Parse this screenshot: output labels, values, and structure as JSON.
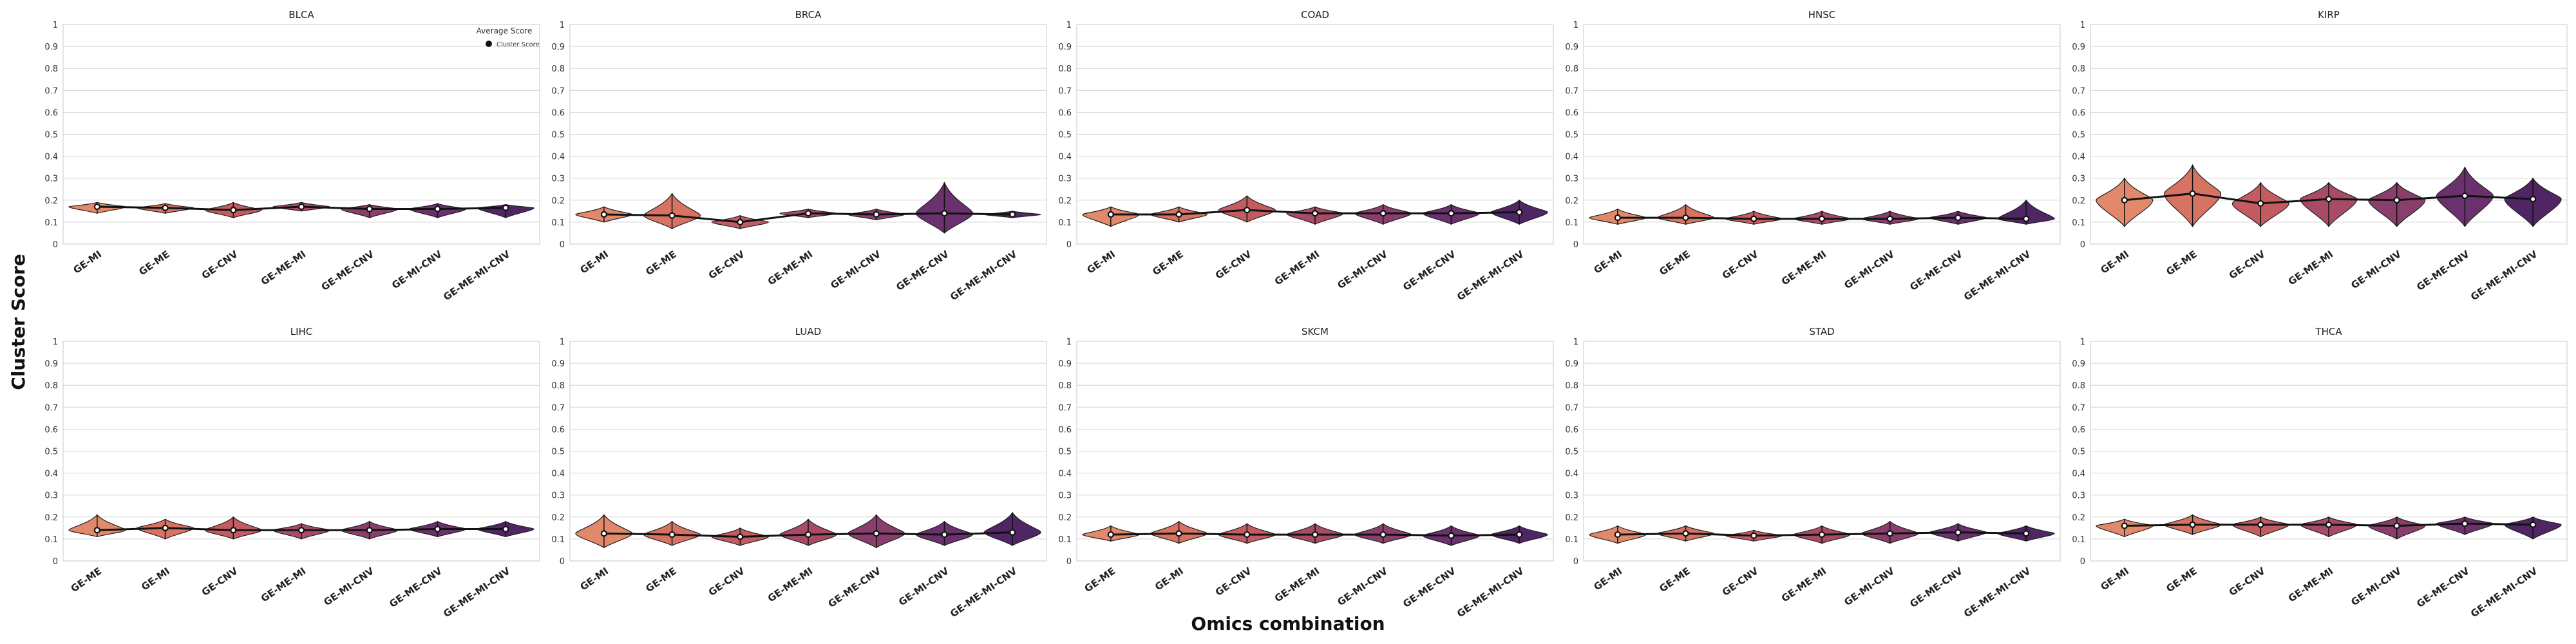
{
  "figure": {
    "ylabel": "Cluster Score",
    "xlabel": "Omics combination",
    "legend": {
      "title": "Average Score",
      "entry": "Cluster Score",
      "location": "top-right of first panel"
    }
  },
  "palette": [
    "#e1896a",
    "#d67362",
    "#c35c60",
    "#a84b66",
    "#8a3e6c",
    "#6b306e",
    "#4f2563"
  ],
  "chart_data": [
    {
      "type": "violin",
      "title": "BLCA",
      "categories": [
        "GE-MI",
        "GE-ME",
        "GE-CNV",
        "GE-ME-MI",
        "GE-ME-CNV",
        "GE-MI-CNV",
        "GE-ME-MI-CNV"
      ],
      "means": [
        0.17,
        0.165,
        0.155,
        0.17,
        0.16,
        0.16,
        0.165
      ],
      "ranges": [
        [
          0.14,
          0.19
        ],
        [
          0.14,
          0.185
        ],
        [
          0.12,
          0.19
        ],
        [
          0.15,
          0.19
        ],
        [
          0.12,
          0.18
        ],
        [
          0.12,
          0.185
        ],
        [
          0.12,
          0.18
        ]
      ],
      "ylim": [
        0,
        1
      ],
      "yticks": [
        "0",
        "0.1",
        "0.2",
        "0.3",
        "0.4",
        "0.5",
        "0.6",
        "0.7",
        "0.8",
        "0.9",
        "1"
      ],
      "grid": true
    },
    {
      "type": "violin",
      "title": "BRCA",
      "categories": [
        "GE-MI",
        "GE-ME",
        "GE-CNV",
        "GE-ME-MI",
        "GE-MI-CNV",
        "GE-ME-CNV",
        "GE-ME-MI-CNV"
      ],
      "means": [
        0.135,
        0.13,
        0.1,
        0.14,
        0.135,
        0.14,
        0.135
      ],
      "ranges": [
        [
          0.1,
          0.17
        ],
        [
          0.07,
          0.23
        ],
        [
          0.07,
          0.13
        ],
        [
          0.12,
          0.16
        ],
        [
          0.11,
          0.16
        ],
        [
          0.05,
          0.28
        ],
        [
          0.12,
          0.15
        ]
      ],
      "ylim": [
        0,
        1
      ],
      "yticks": [
        "0",
        "0.1",
        "0.2",
        "0.3",
        "0.4",
        "0.5",
        "0.6",
        "0.7",
        "0.8",
        "0.9",
        "1"
      ],
      "grid": true
    },
    {
      "type": "violin",
      "title": "COAD",
      "categories": [
        "GE-MI",
        "GE-ME",
        "GE-CNV",
        "GE-ME-MI",
        "GE-MI-CNV",
        "GE-ME-CNV",
        "GE-ME-MI-CNV"
      ],
      "means": [
        0.135,
        0.135,
        0.155,
        0.14,
        0.14,
        0.14,
        0.145
      ],
      "ranges": [
        [
          0.08,
          0.17
        ],
        [
          0.1,
          0.17
        ],
        [
          0.1,
          0.22
        ],
        [
          0.09,
          0.17
        ],
        [
          0.09,
          0.18
        ],
        [
          0.09,
          0.18
        ],
        [
          0.09,
          0.2
        ]
      ],
      "ylim": [
        0,
        1
      ],
      "yticks": [
        "0",
        "0.1",
        "0.2",
        "0.3",
        "0.4",
        "0.5",
        "0.6",
        "0.7",
        "0.8",
        "0.9",
        "1"
      ],
      "grid": true
    },
    {
      "type": "violin",
      "title": "HNSC",
      "categories": [
        "GE-MI",
        "GE-ME",
        "GE-CNV",
        "GE-ME-MI",
        "GE-MI-CNV",
        "GE-ME-CNV",
        "GE-ME-MI-CNV"
      ],
      "means": [
        0.12,
        0.12,
        0.115,
        0.115,
        0.115,
        0.12,
        0.115
      ],
      "ranges": [
        [
          0.09,
          0.16
        ],
        [
          0.09,
          0.18
        ],
        [
          0.09,
          0.15
        ],
        [
          0.09,
          0.15
        ],
        [
          0.09,
          0.15
        ],
        [
          0.09,
          0.15
        ],
        [
          0.09,
          0.2
        ]
      ],
      "ylim": [
        0,
        1
      ],
      "yticks": [
        "0",
        "0.1",
        "0.2",
        "0.3",
        "0.4",
        "0.5",
        "0.6",
        "0.7",
        "0.8",
        "0.9",
        "1"
      ],
      "grid": true
    },
    {
      "type": "violin",
      "title": "KIRP",
      "categories": [
        "GE-MI",
        "GE-ME",
        "GE-CNV",
        "GE-ME-MI",
        "GE-MI-CNV",
        "GE-ME-CNV",
        "GE-ME-MI-CNV"
      ],
      "means": [
        0.2,
        0.23,
        0.185,
        0.205,
        0.2,
        0.22,
        0.205
      ],
      "ranges": [
        [
          0.08,
          0.3
        ],
        [
          0.08,
          0.36
        ],
        [
          0.08,
          0.28
        ],
        [
          0.08,
          0.28
        ],
        [
          0.08,
          0.28
        ],
        [
          0.08,
          0.35
        ],
        [
          0.08,
          0.3
        ]
      ],
      "ylim": [
        0,
        1
      ],
      "yticks": [
        "0",
        "0.1",
        "0.2",
        "0.3",
        "0.4",
        "0.5",
        "0.6",
        "0.7",
        "0.8",
        "0.9",
        "1"
      ],
      "grid": true
    },
    {
      "type": "violin",
      "title": "LIHC",
      "categories": [
        "GE-ME",
        "GE-MI",
        "GE-CNV",
        "GE-ME-MI",
        "GE-MI-CNV",
        "GE-ME-CNV",
        "GE-ME-MI-CNV"
      ],
      "means": [
        0.14,
        0.15,
        0.14,
        0.14,
        0.14,
        0.145,
        0.145
      ],
      "ranges": [
        [
          0.11,
          0.21
        ],
        [
          0.1,
          0.19
        ],
        [
          0.1,
          0.2
        ],
        [
          0.1,
          0.17
        ],
        [
          0.1,
          0.18
        ],
        [
          0.11,
          0.18
        ],
        [
          0.11,
          0.18
        ]
      ],
      "ylim": [
        0,
        1
      ],
      "yticks": [
        "0",
        "0.1",
        "0.2",
        "0.3",
        "0.4",
        "0.5",
        "0.6",
        "0.7",
        "0.8",
        "0.9",
        "1"
      ],
      "grid": true
    },
    {
      "type": "violin",
      "title": "LUAD",
      "categories": [
        "GE-MI",
        "GE-ME",
        "GE-CNV",
        "GE-ME-MI",
        "GE-ME-CNV",
        "GE-MI-CNV",
        "GE-ME-MI-CNV"
      ],
      "means": [
        0.125,
        0.12,
        0.11,
        0.12,
        0.125,
        0.12,
        0.13
      ],
      "ranges": [
        [
          0.06,
          0.21
        ],
        [
          0.07,
          0.18
        ],
        [
          0.07,
          0.15
        ],
        [
          0.07,
          0.19
        ],
        [
          0.06,
          0.21
        ],
        [
          0.07,
          0.18
        ],
        [
          0.07,
          0.22
        ]
      ],
      "ylim": [
        0,
        1
      ],
      "yticks": [
        "0",
        "0.1",
        "0.2",
        "0.3",
        "0.4",
        "0.5",
        "0.6",
        "0.7",
        "0.8",
        "0.9",
        "1"
      ],
      "grid": true
    },
    {
      "type": "violin",
      "title": "SKCM",
      "categories": [
        "GE-ME",
        "GE-MI",
        "GE-CNV",
        "GE-ME-MI",
        "GE-MI-CNV",
        "GE-ME-CNV",
        "GE-ME-MI-CNV"
      ],
      "means": [
        0.12,
        0.125,
        0.12,
        0.12,
        0.12,
        0.115,
        0.12
      ],
      "ranges": [
        [
          0.09,
          0.16
        ],
        [
          0.08,
          0.18
        ],
        [
          0.08,
          0.17
        ],
        [
          0.08,
          0.17
        ],
        [
          0.08,
          0.17
        ],
        [
          0.07,
          0.16
        ],
        [
          0.08,
          0.16
        ]
      ],
      "ylim": [
        0,
        1
      ],
      "yticks": [
        "0",
        "0.1",
        "0.2",
        "0.3",
        "0.4",
        "0.5",
        "0.6",
        "0.7",
        "0.8",
        "0.9",
        "1"
      ],
      "grid": true
    },
    {
      "type": "violin",
      "title": "STAD",
      "categories": [
        "GE-MI",
        "GE-ME",
        "GE-CNV",
        "GE-ME-MI",
        "GE-MI-CNV",
        "GE-ME-CNV",
        "GE-ME-MI-CNV"
      ],
      "means": [
        0.12,
        0.125,
        0.115,
        0.12,
        0.125,
        0.13,
        0.125
      ],
      "ranges": [
        [
          0.08,
          0.16
        ],
        [
          0.09,
          0.16
        ],
        [
          0.09,
          0.14
        ],
        [
          0.08,
          0.16
        ],
        [
          0.08,
          0.18
        ],
        [
          0.09,
          0.17
        ],
        [
          0.09,
          0.16
        ]
      ],
      "ylim": [
        0,
        1
      ],
      "yticks": [
        "0",
        "0.1",
        "0.2",
        "0.3",
        "0.4",
        "0.5",
        "0.6",
        "0.7",
        "0.8",
        "0.9",
        "1"
      ],
      "grid": true
    },
    {
      "type": "violin",
      "title": "THCA",
      "categories": [
        "GE-MI",
        "GE-ME",
        "GE-CNV",
        "GE-ME-MI",
        "GE-MI-CNV",
        "GE-ME-CNV",
        "GE-ME-MI-CNV"
      ],
      "means": [
        0.16,
        0.165,
        0.165,
        0.165,
        0.16,
        0.17,
        0.165
      ],
      "ranges": [
        [
          0.11,
          0.19
        ],
        [
          0.12,
          0.21
        ],
        [
          0.11,
          0.2
        ],
        [
          0.11,
          0.2
        ],
        [
          0.1,
          0.2
        ],
        [
          0.12,
          0.2
        ],
        [
          0.1,
          0.2
        ]
      ],
      "ylim": [
        0,
        1
      ],
      "yticks": [
        "0",
        "0.1",
        "0.2",
        "0.3",
        "0.4",
        "0.5",
        "0.6",
        "0.7",
        "0.8",
        "0.9",
        "1"
      ],
      "grid": true
    }
  ]
}
